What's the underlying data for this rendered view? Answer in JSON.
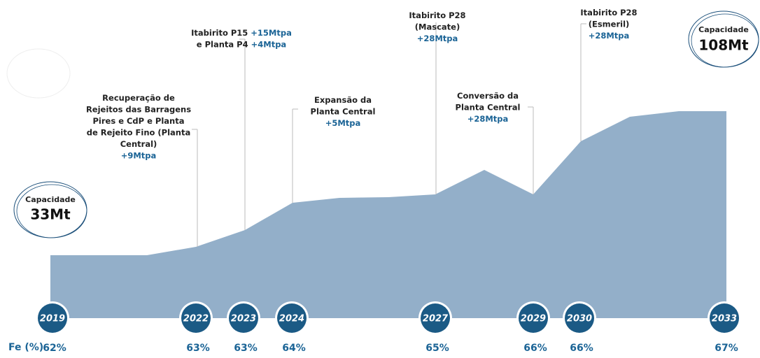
{
  "years": [
    "2019",
    "2022",
    "2023",
    "2024",
    "2027",
    "2029",
    "2030",
    "2033"
  ],
  "fe_label": "Fe (%)",
  "fe_values": [
    "62%",
    "63%",
    "63%",
    "64%",
    "65%",
    "66%",
    "66%",
    "67%"
  ],
  "capacity_start": {
    "label": "Capacidade",
    "value": "33Mt"
  },
  "capacity_end": {
    "label": "Capacidade",
    "value": "108Mt"
  },
  "annotations": [
    {
      "lines": [
        {
          "text": "Recuperação de"
        },
        {
          "text": "Rejeitos das Barragens"
        },
        {
          "text": "Pires e CdP e Planta"
        },
        {
          "text": "de Rejeito Fino (Planta"
        },
        {
          "text": "Central)"
        },
        {
          "highlight": "+9Mtpa"
        }
      ]
    },
    {
      "lines": [
        {
          "text": "Itabirito P15 ",
          "highlight": "+15Mtpa"
        },
        {
          "text": "e Planta P4 ",
          "highlight": "+4Mtpa"
        }
      ]
    },
    {
      "lines": [
        {
          "text": "Expansão da"
        },
        {
          "text": "Planta Central"
        },
        {
          "highlight": "+5Mtpa"
        }
      ]
    },
    {
      "lines": [
        {
          "text": "Itabirito P28"
        },
        {
          "text": "(Mascate)"
        },
        {
          "highlight": "+28Mtpa"
        }
      ]
    },
    {
      "lines": [
        {
          "text": "Conversão da"
        },
        {
          "text": "Planta Central"
        },
        {
          "highlight": "+28Mtpa"
        }
      ]
    },
    {
      "lines": [
        {
          "text": "Itabirito P28"
        },
        {
          "text": "(Esmeril)"
        },
        {
          "highlight": "+28Mtpa"
        }
      ]
    }
  ]
}
